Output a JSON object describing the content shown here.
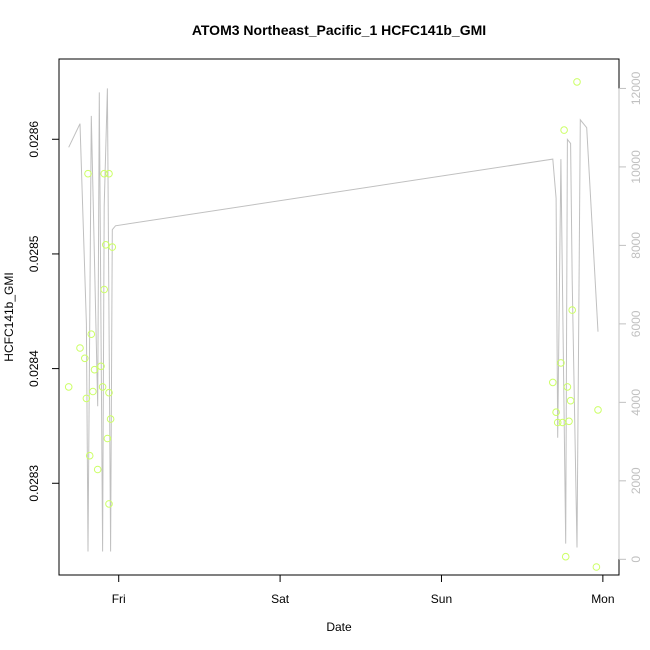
{
  "chart_data": {
    "type": "scatter",
    "title": "ATOM3 Northeast_Pacific_1 HCFC141b_GMI",
    "xlabel": "Date",
    "ylabel": "HCFC141b_GMI",
    "x_ticks": [
      "Fri",
      "Sat",
      "Sun",
      "Mon"
    ],
    "x_tick_values": [
      1.0,
      2.0,
      3.0,
      4.0
    ],
    "xlim": [
      0.63,
      4.1
    ],
    "y_ticks": [
      "0.0283",
      "0.0284",
      "0.0285",
      "0.0286"
    ],
    "y_tick_values": [
      0.0283,
      0.0284,
      0.0285,
      0.0286
    ],
    "ylim": [
      0.02822,
      0.02867
    ],
    "y2_ticks": [
      "0",
      "2000",
      "4000",
      "6000",
      "8000",
      "10000",
      "12000"
    ],
    "y2_tick_values": [
      0,
      2000,
      4000,
      6000,
      8000,
      10000,
      12000
    ],
    "y2lim": [
      -400,
      12750
    ],
    "grid": false,
    "series": [
      {
        "kind": "points",
        "color": "#ccff66",
        "x": [
          0.69,
          0.76,
          0.79,
          0.8,
          0.81,
          0.82,
          0.83,
          0.84,
          0.85,
          0.87,
          0.89,
          0.9,
          0.91,
          0.91,
          0.92,
          0.93,
          0.94,
          0.94,
          0.94,
          0.95,
          0.96,
          3.69,
          3.71,
          3.72,
          3.74,
          3.75,
          3.76,
          3.77,
          3.78,
          3.79,
          3.8,
          3.81,
          3.84,
          3.96,
          3.97
        ],
        "y": [
          0.028384,
          0.028418,
          0.028409,
          0.028374,
          0.02857,
          0.028324,
          0.02843,
          0.02838,
          0.028399,
          0.028312,
          0.028402,
          0.028384,
          0.028469,
          0.02857,
          0.028508,
          0.028339,
          0.028379,
          0.02857,
          0.028282,
          0.028356,
          0.028506,
          0.028388,
          0.028362,
          0.028353,
          0.028405,
          0.028353,
          0.028608,
          0.028236,
          0.028384,
          0.028354,
          0.028372,
          0.028451,
          0.02865,
          0.028227,
          0.028364
        ]
      },
      {
        "kind": "line",
        "axis": "right",
        "color": "#c0c0c0",
        "x": [
          0.69,
          0.76,
          0.8,
          0.81,
          0.83,
          0.87,
          0.88,
          0.9,
          0.91,
          0.93,
          0.95,
          0.96,
          0.98,
          3.69,
          3.71,
          3.72,
          3.74,
          3.77,
          3.78,
          3.8,
          3.81,
          3.84,
          3.86,
          3.9,
          3.97
        ],
        "y": [
          10500,
          11100,
          6000,
          200,
          11300,
          3900,
          11900,
          200,
          9000,
          12000,
          200,
          8400,
          8500,
          10200,
          9200,
          3100,
          10200,
          400,
          10700,
          10600,
          7100,
          300,
          11200,
          11000,
          5800
        ]
      }
    ]
  }
}
